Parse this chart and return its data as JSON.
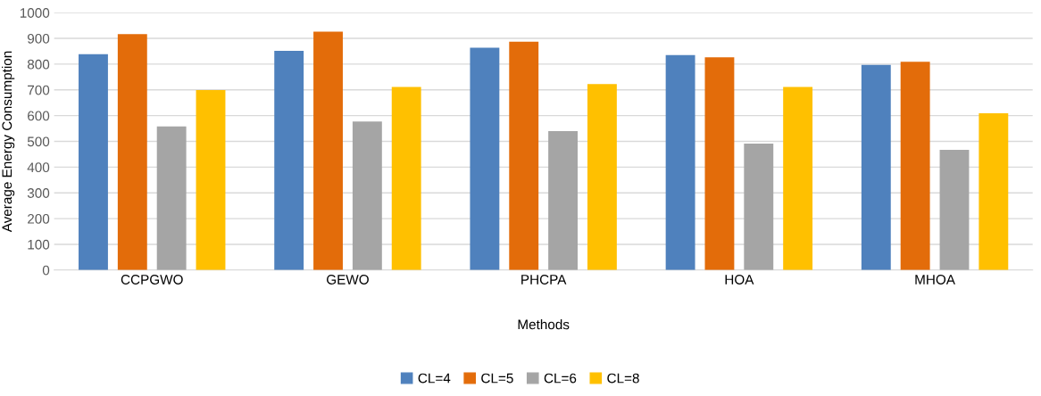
{
  "chart_data": {
    "type": "bar",
    "xlabel": "Methods",
    "ylabel": "Average Energy Consumption",
    "categories": [
      "CCPGWO",
      "GEWO",
      "PHCPA",
      "HOA",
      "MHOA"
    ],
    "series": [
      {
        "name": "CL=4",
        "color": "#4f81bd",
        "values": [
          839,
          852,
          864,
          835,
          797
        ]
      },
      {
        "name": "CL=5",
        "color": "#e36c0a",
        "values": [
          917,
          926,
          887,
          827,
          809
        ]
      },
      {
        "name": "CL=6",
        "color": "#a5a5a5",
        "values": [
          558,
          577,
          540,
          491,
          467
        ]
      },
      {
        "name": "CL=8",
        "color": "#ffc000",
        "values": [
          699,
          711,
          723,
          711,
          609
        ]
      }
    ],
    "ylim": [
      0,
      1000
    ],
    "yticks": [
      0,
      100,
      200,
      300,
      400,
      500,
      600,
      700,
      800,
      900,
      1000
    ],
    "grid": "y",
    "legend": "bottom"
  }
}
